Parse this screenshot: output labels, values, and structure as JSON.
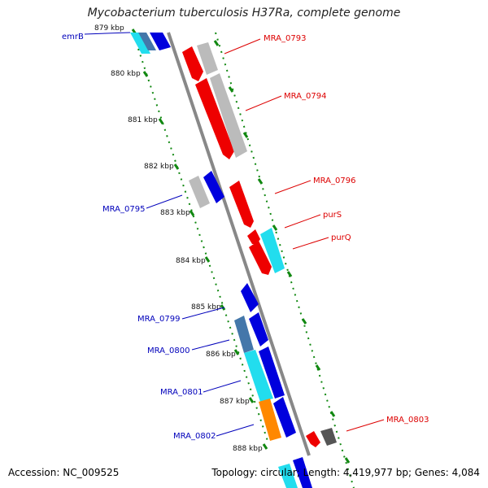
{
  "title": "Mycobacterium tuberculosis H37Ra, complete genome",
  "footer": {
    "accession": "Accession: NC_009525",
    "topology": "Topology: circular;",
    "length": "Length: 4,419,977 bp;",
    "genes": "Genes: 4,084"
  },
  "colors": {
    "red": "#ee0000",
    "blue": "#0000dd",
    "cyan": "#22ddee",
    "gray": "#bbbbbb",
    "darkgray": "#555555",
    "steel": "#4477aa",
    "orange": "#ff8800",
    "backbone": "#888888",
    "tickGreen": "#118811",
    "labelRed": "#dd0000",
    "labelBlue": "#0000bb"
  },
  "ticks": [
    "879 kbp",
    "880 kbp",
    "881 kbp",
    "882 kbp",
    "883 kbp",
    "884 kbp",
    "885 kbp",
    "886 kbp",
    "887 kbp",
    "888 kbp"
  ],
  "genes": [
    {
      "label": "emrB",
      "color": "blue"
    },
    {
      "label": "MRA_0793",
      "color": "red"
    },
    {
      "label": "MRA_0794",
      "color": "red"
    },
    {
      "label": "MRA_0796",
      "color": "red"
    },
    {
      "label": "purS",
      "color": "red"
    },
    {
      "label": "purQ",
      "color": "red"
    },
    {
      "label": "MRA_0795",
      "color": "blue"
    },
    {
      "label": "MRA_0799",
      "color": "blue"
    },
    {
      "label": "MRA_0800",
      "color": "blue"
    },
    {
      "label": "MRA_0801",
      "color": "blue"
    },
    {
      "label": "MRA_0802",
      "color": "blue"
    },
    {
      "label": "MRA_0803",
      "color": "red"
    }
  ]
}
